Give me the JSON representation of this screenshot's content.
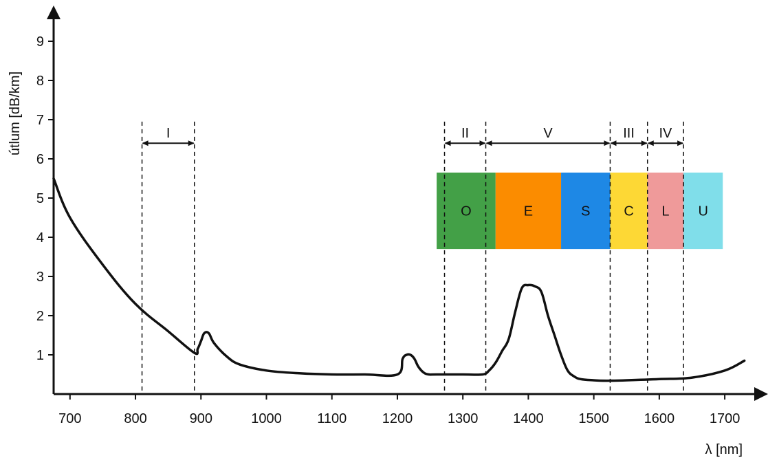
{
  "chart_data": {
    "type": "line",
    "title": "",
    "xlabel": "λ [nm]",
    "ylabel": "útlum [dB/km]",
    "xlim": [
      675,
      1760
    ],
    "ylim": [
      0,
      9.5
    ],
    "x_ticks": [
      700,
      800,
      900,
      1000,
      1100,
      1200,
      1300,
      1400,
      1500,
      1600,
      1700
    ],
    "y_ticks": [
      1,
      2,
      3,
      4,
      5,
      6,
      7,
      8,
      9
    ],
    "grid": false,
    "series": [
      {
        "x": [
          675,
          700,
          750,
          800,
          850,
          890,
          895,
          900,
          905,
          912,
          920,
          940,
          960,
          1000,
          1050,
          1100,
          1150,
          1200,
          1208,
          1214,
          1220,
          1226,
          1232,
          1240,
          1248,
          1260,
          1300,
          1330,
          1340,
          1350,
          1360,
          1370,
          1380,
          1390,
          1400,
          1410,
          1420,
          1430,
          1440,
          1450,
          1460,
          1470,
          1480,
          1500,
          1520,
          1550,
          1600,
          1650,
          1700,
          1730
        ],
        "y": [
          5.5,
          4.5,
          3.3,
          2.3,
          1.6,
          1.05,
          1.15,
          1.35,
          1.55,
          1.55,
          1.3,
          0.95,
          0.75,
          0.6,
          0.53,
          0.5,
          0.5,
          0.5,
          0.9,
          1.0,
          1.0,
          0.9,
          0.7,
          0.55,
          0.5,
          0.5,
          0.5,
          0.5,
          0.6,
          0.8,
          1.1,
          1.4,
          2.1,
          2.7,
          2.78,
          2.75,
          2.6,
          2.0,
          1.5,
          1.0,
          0.6,
          0.45,
          0.38,
          0.35,
          0.34,
          0.35,
          0.38,
          0.42,
          0.6,
          0.85
        ]
      }
    ],
    "windows": [
      {
        "label": "I",
        "from": 810,
        "to": 890
      },
      {
        "label": "II",
        "from": 1272,
        "to": 1335
      },
      {
        "label": "V",
        "from": 1335,
        "to": 1525
      },
      {
        "label": "III",
        "from": 1525,
        "to": 1582
      },
      {
        "label": "IV",
        "from": 1582,
        "to": 1637
      }
    ],
    "bands": [
      {
        "label": "O",
        "from": 1260,
        "to": 1350,
        "color": "#43a047"
      },
      {
        "label": "E",
        "from": 1350,
        "to": 1450,
        "color": "#fb8c00"
      },
      {
        "label": "S",
        "from": 1450,
        "to": 1525,
        "color": "#1e88e5"
      },
      {
        "label": "C",
        "from": 1525,
        "to": 1582,
        "color": "#fdd835"
      },
      {
        "label": "L",
        "from": 1582,
        "to": 1637,
        "color": "#ef9a9a"
      },
      {
        "label": "U",
        "from": 1637,
        "to": 1697,
        "color": "#80deea"
      }
    ],
    "band_y_range": [
      3.7,
      5.65
    ]
  }
}
